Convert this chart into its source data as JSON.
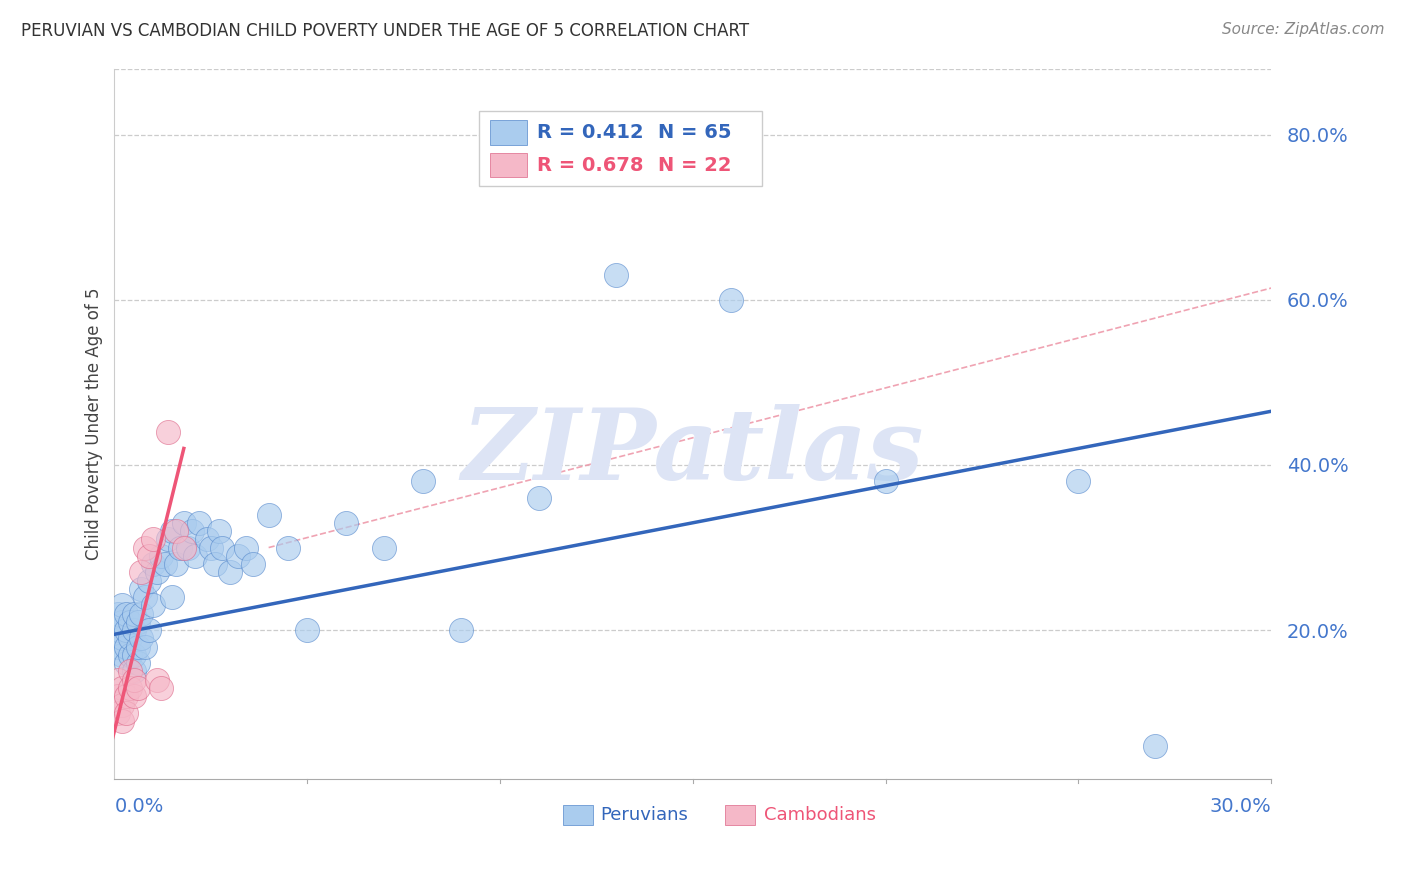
{
  "title": "PERUVIAN VS CAMBODIAN CHILD POVERTY UNDER THE AGE OF 5 CORRELATION CHART",
  "source": "Source: ZipAtlas.com",
  "ylabel": "Child Poverty Under the Age of 5",
  "xlim": [
    0.0,
    0.3
  ],
  "ylim": [
    0.02,
    0.88
  ],
  "peruvian_color": "#aaccee",
  "cambodian_color": "#f5b8c8",
  "peruvian_edge_color": "#5588cc",
  "cambodian_edge_color": "#dd6688",
  "peruvian_line_color": "#3366bb",
  "cambodian_line_color": "#ee5577",
  "diag_color": "#ee99aa",
  "ytick_color": "#4477cc",
  "xlabel_color": "#4477cc",
  "watermark_text": "ZIPatlas",
  "watermark_color": "#dde4f5",
  "peru_line": [
    [
      0.0,
      0.195
    ],
    [
      0.3,
      0.465
    ]
  ],
  "camb_line": [
    [
      -0.002,
      0.04
    ],
    [
      0.018,
      0.42
    ]
  ],
  "diag_line": [
    [
      0.04,
      0.3
    ],
    [
      0.52,
      0.88
    ]
  ],
  "peruvians_x": [
    0.001,
    0.001,
    0.001,
    0.002,
    0.002,
    0.002,
    0.002,
    0.003,
    0.003,
    0.003,
    0.003,
    0.004,
    0.004,
    0.004,
    0.005,
    0.005,
    0.005,
    0.005,
    0.006,
    0.006,
    0.006,
    0.007,
    0.007,
    0.007,
    0.008,
    0.008,
    0.009,
    0.009,
    0.01,
    0.01,
    0.011,
    0.012,
    0.013,
    0.014,
    0.015,
    0.015,
    0.016,
    0.017,
    0.018,
    0.019,
    0.02,
    0.021,
    0.022,
    0.024,
    0.025,
    0.026,
    0.027,
    0.028,
    0.03,
    0.032,
    0.034,
    0.036,
    0.04,
    0.045,
    0.05,
    0.06,
    0.07,
    0.08,
    0.09,
    0.11,
    0.13,
    0.16,
    0.2,
    0.25,
    0.27
  ],
  "peruvians_y": [
    0.18,
    0.2,
    0.22,
    0.17,
    0.19,
    0.21,
    0.23,
    0.16,
    0.18,
    0.2,
    0.22,
    0.17,
    0.19,
    0.21,
    0.15,
    0.17,
    0.2,
    0.22,
    0.16,
    0.18,
    0.21,
    0.19,
    0.22,
    0.25,
    0.18,
    0.24,
    0.2,
    0.26,
    0.23,
    0.28,
    0.27,
    0.29,
    0.28,
    0.31,
    0.24,
    0.32,
    0.28,
    0.3,
    0.33,
    0.3,
    0.32,
    0.29,
    0.33,
    0.31,
    0.3,
    0.28,
    0.32,
    0.3,
    0.27,
    0.29,
    0.3,
    0.28,
    0.34,
    0.3,
    0.2,
    0.33,
    0.3,
    0.38,
    0.2,
    0.36,
    0.63,
    0.6,
    0.38,
    0.38,
    0.06
  ],
  "cambodians_x": [
    0.001,
    0.001,
    0.001,
    0.002,
    0.002,
    0.002,
    0.003,
    0.003,
    0.004,
    0.004,
    0.005,
    0.005,
    0.006,
    0.007,
    0.008,
    0.009,
    0.01,
    0.011,
    0.012,
    0.014,
    0.016,
    0.018
  ],
  "cambodians_y": [
    0.14,
    0.12,
    0.1,
    0.13,
    0.11,
    0.09,
    0.12,
    0.1,
    0.15,
    0.13,
    0.12,
    0.14,
    0.13,
    0.27,
    0.3,
    0.29,
    0.31,
    0.14,
    0.13,
    0.44,
    0.32,
    0.3
  ]
}
